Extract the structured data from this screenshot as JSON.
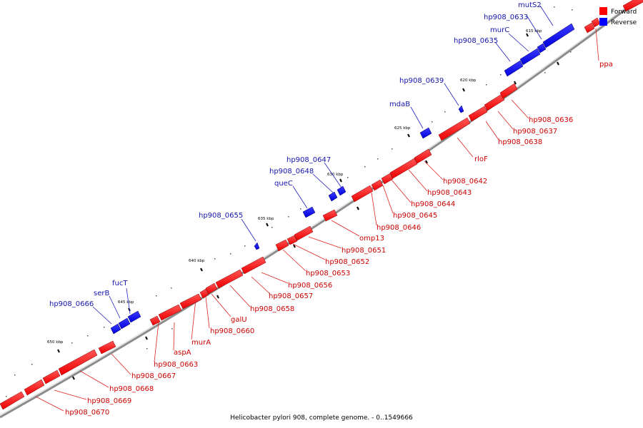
{
  "caption": "Helicobacter pylori 908, complete genome. - 0..1549666",
  "legend": {
    "forward_label": "Forward",
    "reverse_label": "Reverse",
    "forward_color": "#ff0000",
    "reverse_color": "#0000ff"
  },
  "backbone_color": "#8c8c8c",
  "label_colors": {
    "forward": "#cc0000",
    "reverse": "#1515aa"
  },
  "tick_labels": [
    "615 kbp",
    "620 kbp",
    "625 kbp",
    "630 kbp",
    "635 kbp",
    "640 kbp",
    "645 kbp",
    "650 kbp"
  ],
  "forward_labels": [
    "ppa",
    "hp908_0636",
    "hp908_0637",
    "hp908_0638",
    "rloF",
    "hp908_0642",
    "hp908_0643",
    "hp908_0644",
    "hp908_0645",
    "hp908_0646",
    "omp13",
    "hp908_0651",
    "hp908_0652",
    "hp908_0653",
    "hp908_0656",
    "hp908_0657",
    "hp908_0658",
    "galU",
    "hp908_0660",
    "murA",
    "aspA",
    "hp908_0663",
    "hp908_0667",
    "hp908_0668",
    "hp908_0669",
    "hp908_0670"
  ],
  "reverse_labels": [
    "mutS2",
    "hp908_0633",
    "murC",
    "hp908_0635",
    "hp908_0639",
    "mdaB",
    "hp908_0647",
    "hp908_0648",
    "queC",
    "hp908_0655",
    "fucT",
    "serB",
    "hp908_0666"
  ]
}
